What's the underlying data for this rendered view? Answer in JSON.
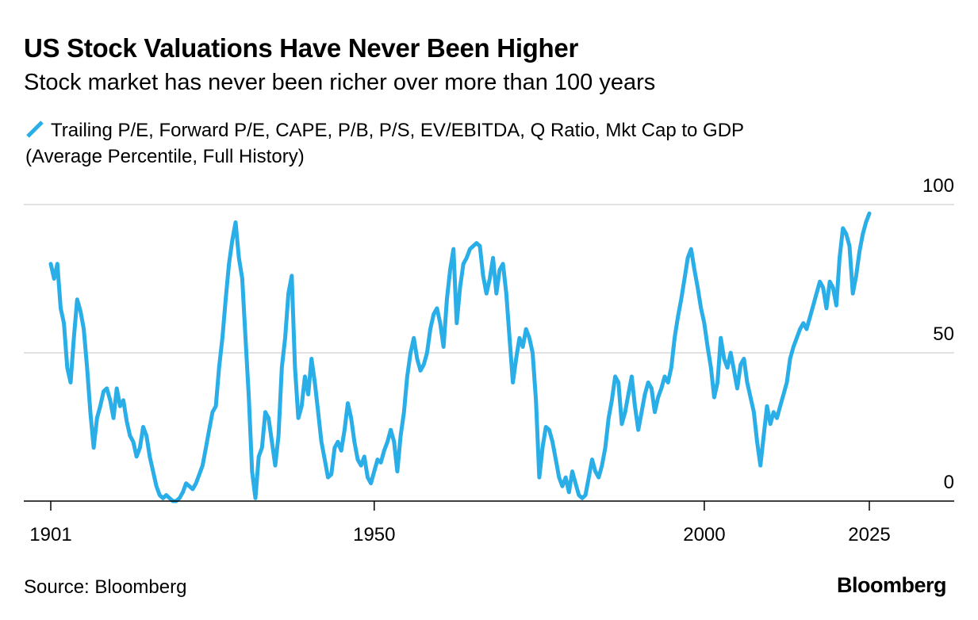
{
  "chart_data": {
    "type": "line",
    "title": "US Stock Valuations Have Never Been Higher",
    "subtitle": "Stock market has never been richer over more than 100 years",
    "ylabel": "",
    "xlabel": "",
    "ylim": [
      0,
      100
    ],
    "xlim": [
      1901,
      2035
    ],
    "grid": true,
    "legend_position": "top-left",
    "yticks": [
      {
        "value": 100,
        "label": "100"
      },
      {
        "value": 50,
        "label": "50"
      },
      {
        "value": 0,
        "label": "0"
      }
    ],
    "xticks": [
      {
        "value": 1901,
        "label": "1901"
      },
      {
        "value": 1950,
        "label": "1950"
      },
      {
        "value": 2000,
        "label": "2000"
      },
      {
        "value": 2025,
        "label": "2025"
      }
    ],
    "series": [
      {
        "name": "Trailing P/E, Forward P/E, CAPE, P/B, P/S, EV/EBITDA, Q Ratio, Mkt Cap to GDP",
        "name_sub": "(Average Percentile, Full History)",
        "color": "#29aee8",
        "points": [
          [
            1901.0,
            80
          ],
          [
            1901.5,
            75
          ],
          [
            1902.0,
            80
          ],
          [
            1902.5,
            65
          ],
          [
            1903.0,
            60
          ],
          [
            1903.5,
            45
          ],
          [
            1904.0,
            40
          ],
          [
            1904.5,
            55
          ],
          [
            1905.0,
            68
          ],
          [
            1905.5,
            64
          ],
          [
            1906.0,
            58
          ],
          [
            1906.5,
            45
          ],
          [
            1907.0,
            30
          ],
          [
            1907.5,
            18
          ],
          [
            1908.0,
            28
          ],
          [
            1908.5,
            32
          ],
          [
            1909.0,
            37
          ],
          [
            1909.5,
            38
          ],
          [
            1910.0,
            34
          ],
          [
            1910.5,
            28
          ],
          [
            1911.0,
            38
          ],
          [
            1911.5,
            32
          ],
          [
            1912.0,
            34
          ],
          [
            1912.5,
            27
          ],
          [
            1913.0,
            22
          ],
          [
            1913.5,
            20
          ],
          [
            1914.0,
            15
          ],
          [
            1914.5,
            18
          ],
          [
            1915.0,
            25
          ],
          [
            1915.5,
            22
          ],
          [
            1916.0,
            15
          ],
          [
            1916.5,
            10
          ],
          [
            1917.0,
            5
          ],
          [
            1917.5,
            2
          ],
          [
            1918.0,
            1
          ],
          [
            1918.5,
            2
          ],
          [
            1919.0,
            1
          ],
          [
            1919.5,
            0
          ],
          [
            1920.0,
            0
          ],
          [
            1920.5,
            1
          ],
          [
            1921.0,
            3
          ],
          [
            1921.5,
            6
          ],
          [
            1922.0,
            5
          ],
          [
            1922.5,
            4
          ],
          [
            1923.0,
            6
          ],
          [
            1923.5,
            9
          ],
          [
            1924.0,
            12
          ],
          [
            1924.5,
            18
          ],
          [
            1925.0,
            24
          ],
          [
            1925.5,
            30
          ],
          [
            1926.0,
            32
          ],
          [
            1926.5,
            45
          ],
          [
            1927.0,
            55
          ],
          [
            1927.5,
            68
          ],
          [
            1928.0,
            80
          ],
          [
            1928.5,
            88
          ],
          [
            1929.0,
            94
          ],
          [
            1929.5,
            82
          ],
          [
            1930.0,
            75
          ],
          [
            1930.5,
            55
          ],
          [
            1931.0,
            35
          ],
          [
            1931.5,
            10
          ],
          [
            1932.0,
            1
          ],
          [
            1932.5,
            15
          ],
          [
            1933.0,
            18
          ],
          [
            1933.5,
            30
          ],
          [
            1934.0,
            28
          ],
          [
            1934.5,
            20
          ],
          [
            1935.0,
            12
          ],
          [
            1935.5,
            22
          ],
          [
            1936.0,
            45
          ],
          [
            1936.5,
            55
          ],
          [
            1937.0,
            70
          ],
          [
            1937.5,
            76
          ],
          [
            1938.0,
            45
          ],
          [
            1938.5,
            28
          ],
          [
            1939.0,
            32
          ],
          [
            1939.5,
            42
          ],
          [
            1940.0,
            36
          ],
          [
            1940.5,
            48
          ],
          [
            1941.0,
            40
          ],
          [
            1941.5,
            30
          ],
          [
            1942.0,
            20
          ],
          [
            1942.5,
            14
          ],
          [
            1943.0,
            8
          ],
          [
            1943.5,
            9
          ],
          [
            1944.0,
            18
          ],
          [
            1944.5,
            20
          ],
          [
            1945.0,
            17
          ],
          [
            1945.5,
            24
          ],
          [
            1946.0,
            33
          ],
          [
            1946.5,
            28
          ],
          [
            1947.0,
            20
          ],
          [
            1947.5,
            14
          ],
          [
            1948.0,
            12
          ],
          [
            1948.5,
            15
          ],
          [
            1949.0,
            8
          ],
          [
            1949.5,
            6
          ],
          [
            1950.0,
            10
          ],
          [
            1950.5,
            14
          ],
          [
            1951.0,
            13
          ],
          [
            1951.5,
            17
          ],
          [
            1952.0,
            20
          ],
          [
            1952.5,
            24
          ],
          [
            1953.0,
            20
          ],
          [
            1953.5,
            10
          ],
          [
            1954.0,
            22
          ],
          [
            1954.5,
            30
          ],
          [
            1955.0,
            42
          ],
          [
            1955.5,
            50
          ],
          [
            1956.0,
            55
          ],
          [
            1956.5,
            48
          ],
          [
            1957.0,
            44
          ],
          [
            1957.5,
            46
          ],
          [
            1958.0,
            50
          ],
          [
            1958.5,
            58
          ],
          [
            1959.0,
            63
          ],
          [
            1959.5,
            65
          ],
          [
            1960.0,
            60
          ],
          [
            1960.5,
            52
          ],
          [
            1961.0,
            68
          ],
          [
            1961.5,
            78
          ],
          [
            1962.0,
            85
          ],
          [
            1962.5,
            60
          ],
          [
            1963.0,
            72
          ],
          [
            1963.5,
            80
          ],
          [
            1964.0,
            82
          ],
          [
            1964.5,
            85
          ],
          [
            1965.0,
            86
          ],
          [
            1965.5,
            87
          ],
          [
            1966.0,
            86
          ],
          [
            1966.5,
            76
          ],
          [
            1967.0,
            70
          ],
          [
            1967.5,
            75
          ],
          [
            1968.0,
            82
          ],
          [
            1968.5,
            70
          ],
          [
            1969.0,
            78
          ],
          [
            1969.5,
            80
          ],
          [
            1970.0,
            70
          ],
          [
            1970.5,
            55
          ],
          [
            1971.0,
            40
          ],
          [
            1971.5,
            48
          ],
          [
            1972.0,
            55
          ],
          [
            1972.5,
            52
          ],
          [
            1973.0,
            58
          ],
          [
            1973.5,
            55
          ],
          [
            1974.0,
            50
          ],
          [
            1974.5,
            34
          ],
          [
            1975.0,
            8
          ],
          [
            1975.5,
            18
          ],
          [
            1976.0,
            25
          ],
          [
            1976.5,
            24
          ],
          [
            1977.0,
            20
          ],
          [
            1977.5,
            14
          ],
          [
            1978.0,
            8
          ],
          [
            1978.5,
            5
          ],
          [
            1979.0,
            8
          ],
          [
            1979.5,
            3
          ],
          [
            1980.0,
            10
          ],
          [
            1980.5,
            6
          ],
          [
            1981.0,
            2
          ],
          [
            1981.5,
            1
          ],
          [
            1982.0,
            2
          ],
          [
            1982.5,
            8
          ],
          [
            1983.0,
            14
          ],
          [
            1983.5,
            10
          ],
          [
            1984.0,
            8
          ],
          [
            1984.5,
            12
          ],
          [
            1985.0,
            18
          ],
          [
            1985.5,
            28
          ],
          [
            1986.0,
            34
          ],
          [
            1986.5,
            42
          ],
          [
            1987.0,
            40
          ],
          [
            1987.5,
            26
          ],
          [
            1988.0,
            30
          ],
          [
            1988.5,
            36
          ],
          [
            1989.0,
            42
          ],
          [
            1989.5,
            32
          ],
          [
            1990.0,
            24
          ],
          [
            1990.5,
            30
          ],
          [
            1991.0,
            36
          ],
          [
            1991.5,
            40
          ],
          [
            1992.0,
            38
          ],
          [
            1992.5,
            30
          ],
          [
            1993.0,
            35
          ],
          [
            1993.5,
            38
          ],
          [
            1994.0,
            42
          ],
          [
            1994.5,
            40
          ],
          [
            1995.0,
            45
          ],
          [
            1995.5,
            55
          ],
          [
            1996.0,
            62
          ],
          [
            1996.5,
            68
          ],
          [
            1997.0,
            75
          ],
          [
            1997.5,
            82
          ],
          [
            1998.0,
            85
          ],
          [
            1998.5,
            78
          ],
          [
            1999.0,
            72
          ],
          [
            1999.5,
            65
          ],
          [
            2000.0,
            60
          ],
          [
            2000.5,
            52
          ],
          [
            2001.0,
            45
          ],
          [
            2001.5,
            35
          ],
          [
            2002.0,
            40
          ],
          [
            2002.5,
            55
          ],
          [
            2003.0,
            48
          ],
          [
            2003.5,
            45
          ],
          [
            2004.0,
            50
          ],
          [
            2004.5,
            44
          ],
          [
            2005.0,
            38
          ],
          [
            2005.5,
            46
          ],
          [
            2006.0,
            48
          ],
          [
            2006.5,
            40
          ],
          [
            2007.0,
            35
          ],
          [
            2007.5,
            30
          ],
          [
            2008.0,
            20
          ],
          [
            2008.5,
            12
          ],
          [
            2009.0,
            22
          ],
          [
            2009.5,
            32
          ],
          [
            2010.0,
            26
          ],
          [
            2010.5,
            30
          ],
          [
            2011.0,
            28
          ],
          [
            2011.5,
            32
          ],
          [
            2012.0,
            36
          ],
          [
            2012.5,
            40
          ],
          [
            2013.0,
            48
          ],
          [
            2013.5,
            52
          ],
          [
            2014.0,
            55
          ],
          [
            2014.5,
            58
          ],
          [
            2015.0,
            60
          ],
          [
            2015.5,
            58
          ],
          [
            2016.0,
            62
          ],
          [
            2016.5,
            66
          ],
          [
            2017.0,
            70
          ],
          [
            2017.5,
            74
          ],
          [
            2018.0,
            72
          ],
          [
            2018.5,
            65
          ],
          [
            2019.0,
            74
          ],
          [
            2019.5,
            72
          ],
          [
            2020.0,
            66
          ],
          [
            2020.5,
            82
          ],
          [
            2021.0,
            92
          ],
          [
            2021.5,
            90
          ],
          [
            2022.0,
            86
          ],
          [
            2022.5,
            70
          ],
          [
            2023.0,
            76
          ],
          [
            2023.5,
            84
          ],
          [
            2024.0,
            90
          ],
          [
            2024.5,
            94
          ],
          [
            2025.0,
            97
          ]
        ]
      }
    ],
    "source": "Source: Bloomberg",
    "brand": "Bloomberg"
  }
}
